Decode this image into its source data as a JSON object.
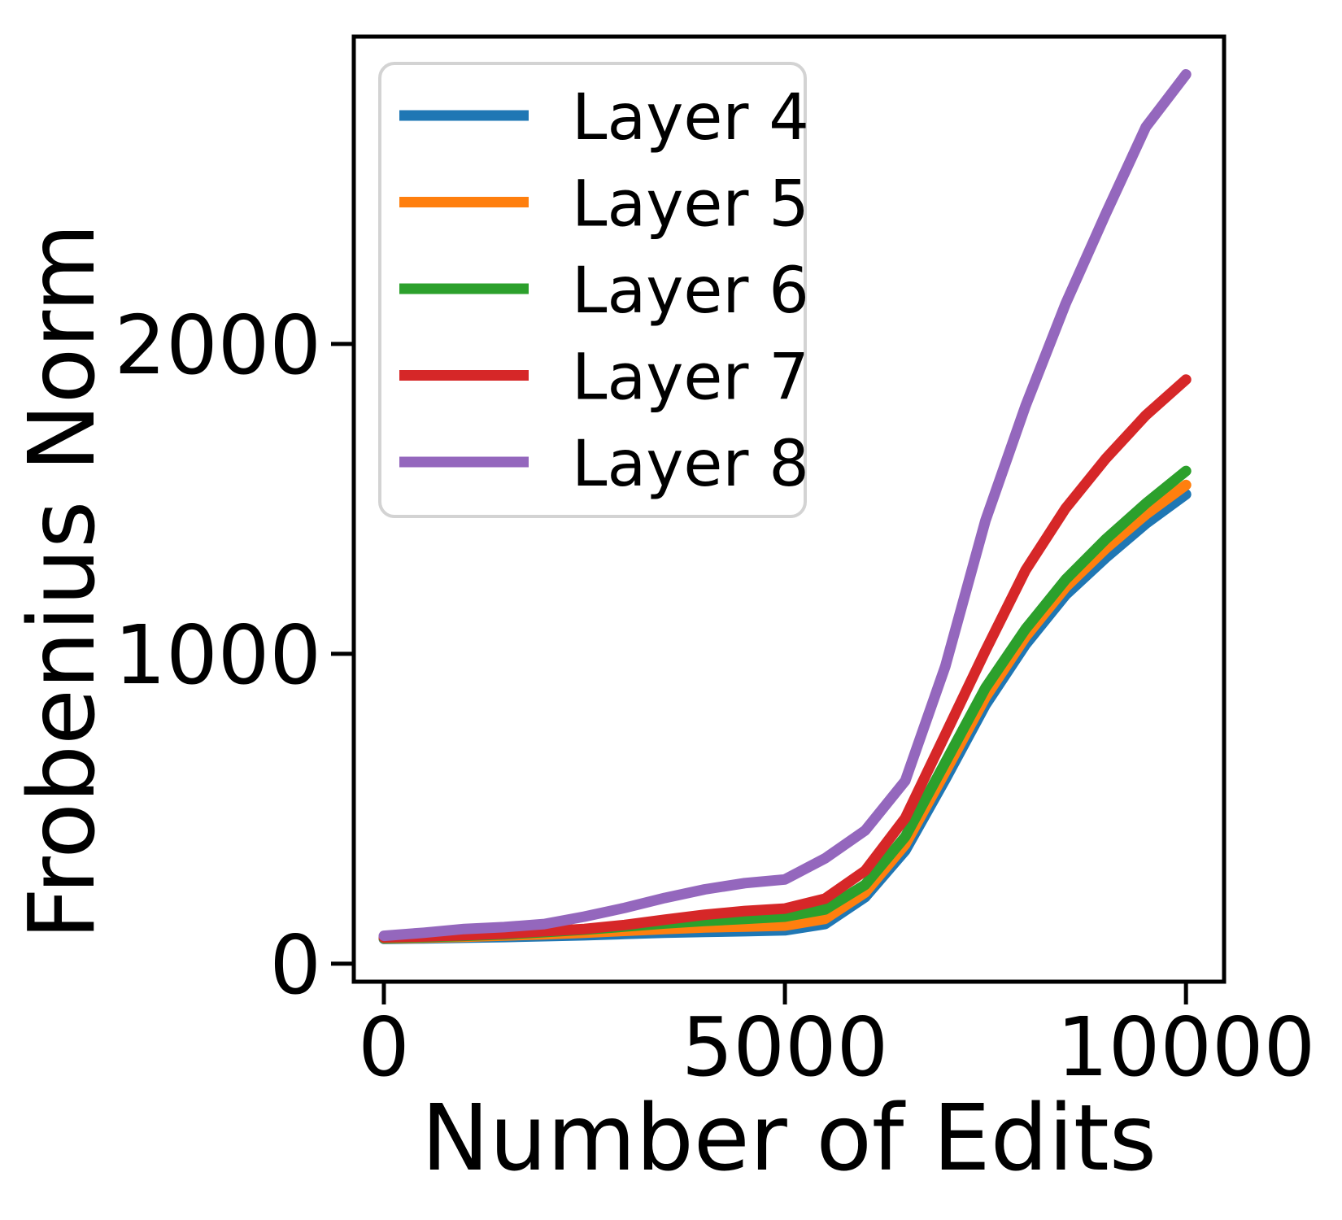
{
  "chart_data": {
    "type": "line",
    "title": "",
    "xlabel": "Number of Edits",
    "ylabel": "Frobenius Norm",
    "xlim": [
      -375,
      10475
    ],
    "ylim": [
      -58,
      2992
    ],
    "x_ticks": [
      0,
      5000,
      10000
    ],
    "x_tick_labels": [
      "0",
      "5000",
      "10000"
    ],
    "y_ticks": [
      0,
      1000,
      2000
    ],
    "y_tick_labels": [
      "0",
      "1000",
      "2000"
    ],
    "grid": false,
    "legend_position": "upper left",
    "x": [
      0,
      500,
      1000,
      1500,
      2000,
      2500,
      3000,
      3500,
      4000,
      4500,
      5000,
      5500,
      6000,
      6500,
      7000,
      7500,
      8000,
      8500,
      9000,
      9500,
      10000
    ],
    "series": [
      {
        "name": "Layer 4",
        "color": "#1f77b4",
        "values": [
          80,
          82,
          84,
          86,
          89,
          92,
          96,
          100,
          103,
          105,
          108,
          128,
          215,
          365,
          595,
          835,
          1030,
          1190,
          1310,
          1420,
          1515
        ]
      },
      {
        "name": "Layer 5",
        "color": "#ff7f0e",
        "values": [
          82,
          84,
          87,
          91,
          95,
          100,
          106,
          112,
          117,
          120,
          123,
          145,
          230,
          385,
          620,
          860,
          1055,
          1215,
          1340,
          1450,
          1545
        ]
      },
      {
        "name": "Layer 6",
        "color": "#2ca02c",
        "values": [
          83,
          86,
          90,
          95,
          102,
          110,
          120,
          130,
          138,
          145,
          152,
          175,
          255,
          410,
          650,
          890,
          1080,
          1240,
          1370,
          1485,
          1590
        ]
      },
      {
        "name": "Layer 7",
        "color": "#d62728",
        "values": [
          85,
          88,
          92,
          97,
          105,
          112,
          125,
          142,
          158,
          170,
          178,
          210,
          300,
          470,
          740,
          1010,
          1270,
          1470,
          1630,
          1770,
          1885
        ]
      },
      {
        "name": "Layer 8",
        "color": "#9467bd",
        "values": [
          90,
          100,
          112,
          118,
          128,
          152,
          180,
          212,
          240,
          260,
          272,
          340,
          430,
          590,
          960,
          1430,
          1800,
          2130,
          2420,
          2700,
          2870
        ]
      }
    ],
    "axis_color": "#000000",
    "legend_border_color": "#d3d3d3",
    "legend_background": "#ffffff"
  }
}
